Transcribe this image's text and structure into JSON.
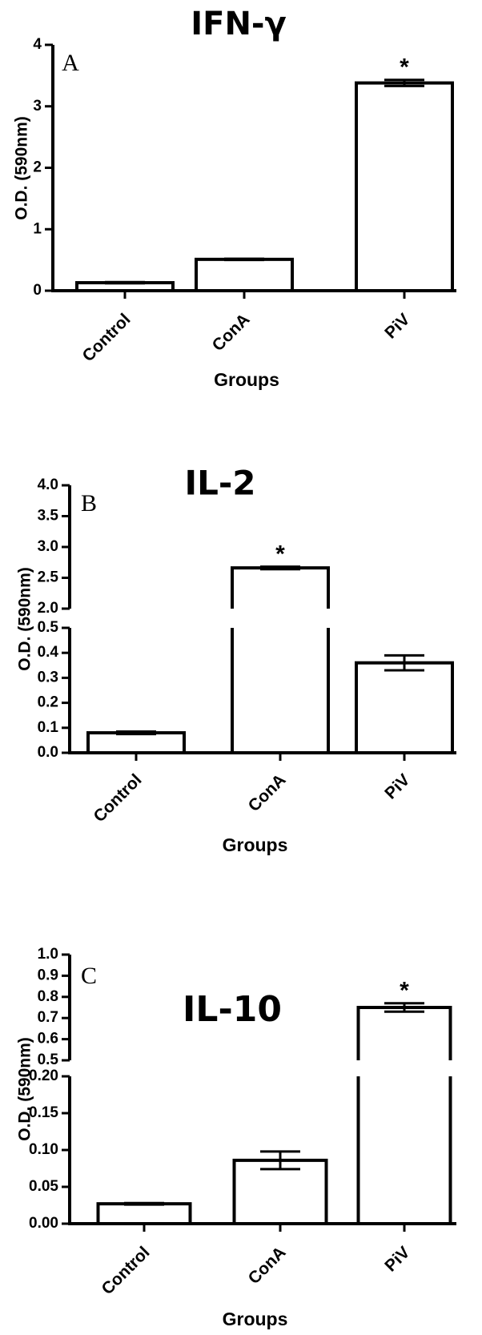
{
  "chart_data": [
    {
      "type": "bar",
      "title": "IFN-γ",
      "panel_label": "A",
      "xlabel": "Groups",
      "ylabel": "O.D. (590nm)",
      "categories": [
        "Control",
        "ConA",
        "PiV"
      ],
      "values": [
        0.13,
        0.51,
        3.38
      ],
      "errors": [
        0.01,
        0.01,
        0.05
      ],
      "significance": [
        "",
        "",
        "*"
      ],
      "ylim": [
        0,
        4
      ],
      "yticks": [
        "0",
        "1",
        "2",
        "3",
        "4"
      ],
      "broken_axis": false,
      "grid": false,
      "legend": "none"
    },
    {
      "type": "bar",
      "title": "IL-2",
      "panel_label": "B",
      "xlabel": "Groups",
      "ylabel": "O.D. (590nm)",
      "categories": [
        "Control",
        "ConA",
        "PiV"
      ],
      "values": [
        0.08,
        2.66,
        0.36
      ],
      "errors": [
        0.005,
        0.02,
        0.03
      ],
      "significance": [
        "",
        "*",
        ""
      ],
      "ylim": [
        0,
        4.0
      ],
      "broken_axis": true,
      "lower_range": [
        0,
        0.5
      ],
      "upper_range": [
        2.0,
        4.0
      ],
      "lower_ticks": [
        "0.0",
        "0.1",
        "0.2",
        "0.3",
        "0.4",
        "0.5"
      ],
      "upper_ticks": [
        "2.0",
        "2.5",
        "3.0",
        "3.5",
        "4.0"
      ],
      "grid": false,
      "legend": "none"
    },
    {
      "type": "bar",
      "title": "IL-10",
      "panel_label": "C",
      "xlabel": "Groups",
      "ylabel": "O.D. (590nm)",
      "categories": [
        "Control",
        "ConA",
        "PiV"
      ],
      "values": [
        0.027,
        0.086,
        0.75
      ],
      "errors": [
        0.001,
        0.012,
        0.02
      ],
      "significance": [
        "",
        "",
        "*"
      ],
      "ylim": [
        0,
        1.0
      ],
      "broken_axis": true,
      "lower_range": [
        0,
        0.2
      ],
      "upper_range": [
        0.5,
        1.0
      ],
      "lower_ticks": [
        "0.00",
        "0.05",
        "0.10",
        "0.15",
        "0.20"
      ],
      "upper_ticks": [
        "0.5",
        "0.6",
        "0.7",
        "0.8",
        "0.9",
        "1.0"
      ],
      "grid": false,
      "legend": "none"
    }
  ]
}
